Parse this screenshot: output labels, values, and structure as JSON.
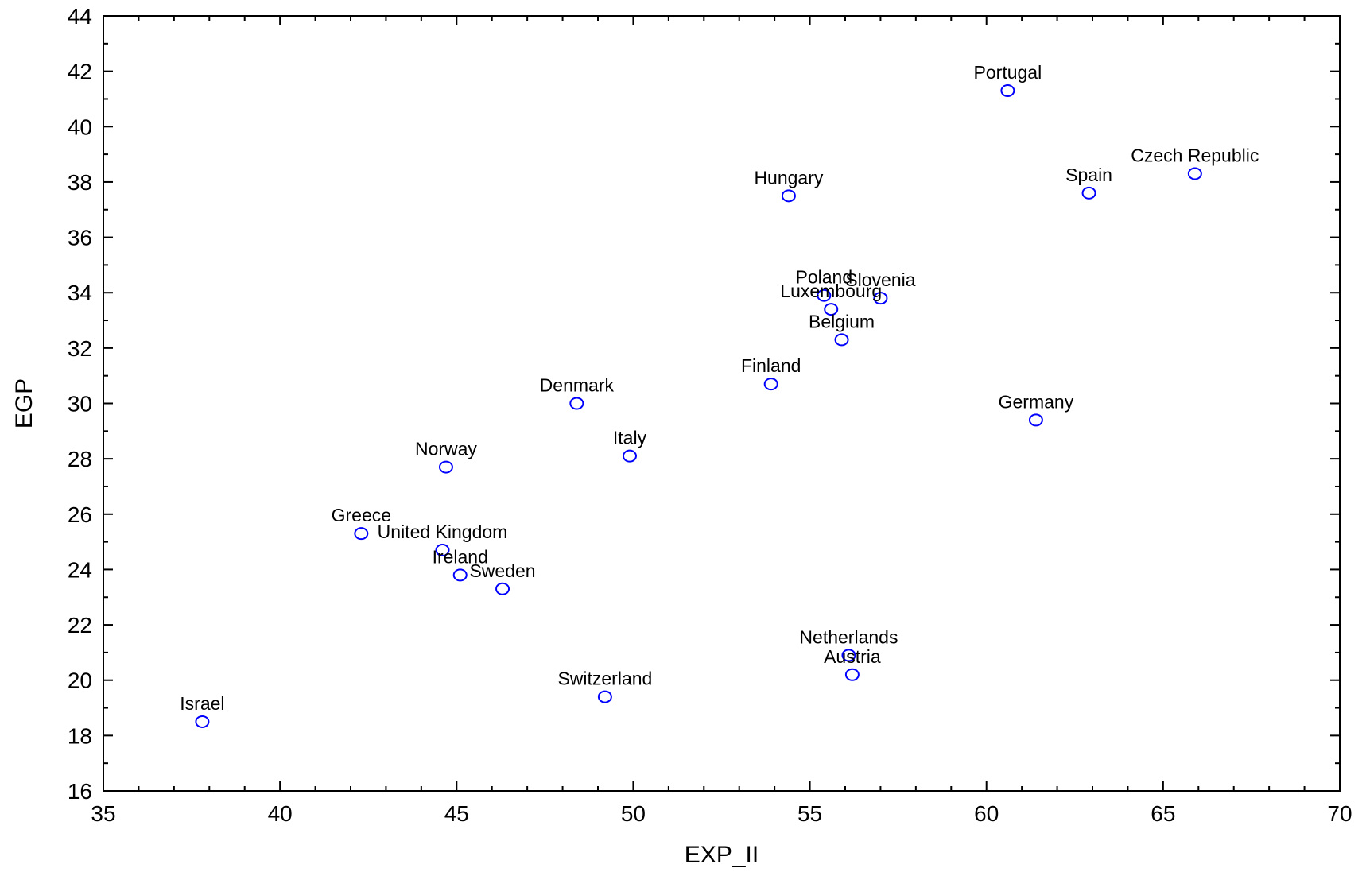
{
  "chart_data": {
    "type": "scatter",
    "xlabel": "EXP_II",
    "ylabel": "EGP",
    "xlim": [
      35,
      70
    ],
    "ylim": [
      16,
      44
    ],
    "x_ticks": [
      35,
      40,
      45,
      50,
      55,
      60,
      65,
      70
    ],
    "y_ticks": [
      16,
      18,
      20,
      22,
      24,
      26,
      28,
      30,
      32,
      34,
      36,
      38,
      40,
      42,
      44
    ],
    "grid": false,
    "marker_color": "#0000ff",
    "points": [
      {
        "label": "Portugal",
        "x": 60.6,
        "y": 41.3
      },
      {
        "label": "Czech Republic",
        "x": 65.9,
        "y": 38.3
      },
      {
        "label": "Spain",
        "x": 62.9,
        "y": 37.6
      },
      {
        "label": "Hungary",
        "x": 54.4,
        "y": 37.5
      },
      {
        "label": "Poland",
        "x": 55.4,
        "y": 33.9
      },
      {
        "label": "Slovenia",
        "x": 57.0,
        "y": 33.8
      },
      {
        "label": "Luxembourg",
        "x": 55.6,
        "y": 33.4
      },
      {
        "label": "Belgium",
        "x": 55.9,
        "y": 32.3
      },
      {
        "label": "Finland",
        "x": 53.9,
        "y": 30.7
      },
      {
        "label": "Denmark",
        "x": 48.4,
        "y": 30.0
      },
      {
        "label": "Germany",
        "x": 61.4,
        "y": 29.4
      },
      {
        "label": "Italy",
        "x": 49.9,
        "y": 28.1
      },
      {
        "label": "Norway",
        "x": 44.7,
        "y": 27.7
      },
      {
        "label": "Greece",
        "x": 42.3,
        "y": 25.3
      },
      {
        "label": "United Kingdom",
        "x": 44.6,
        "y": 24.7
      },
      {
        "label": "Ireland",
        "x": 45.1,
        "y": 23.8
      },
      {
        "label": "Sweden",
        "x": 46.3,
        "y": 23.3
      },
      {
        "label": "Netherlands",
        "x": 56.1,
        "y": 20.9
      },
      {
        "label": "Austria",
        "x": 56.2,
        "y": 20.2
      },
      {
        "label": "Switzerland",
        "x": 49.2,
        "y": 19.4
      },
      {
        "label": "Israel",
        "x": 37.8,
        "y": 18.5
      }
    ]
  }
}
